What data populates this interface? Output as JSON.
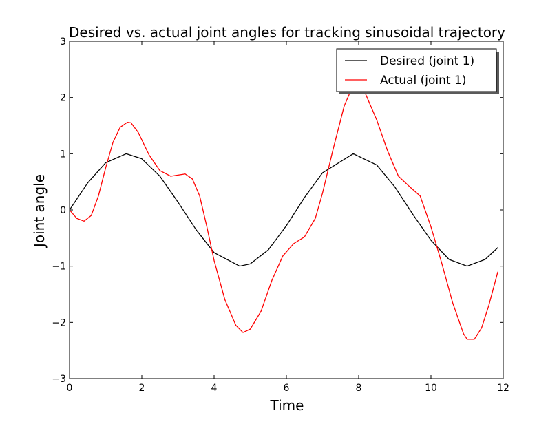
{
  "chart_data": {
    "type": "line",
    "title": "Desired vs. actual joint angles for tracking sinusoidal trajectory",
    "xlabel": "Time",
    "ylabel": "Joint angle",
    "xlim": [
      0,
      12
    ],
    "ylim": [
      -3,
      3
    ],
    "xticks": [
      "0",
      "2",
      "4",
      "6",
      "8",
      "10",
      "12"
    ],
    "yticks": [
      "−3",
      "−2",
      "−1",
      "0",
      "1",
      "2",
      "3"
    ],
    "grid": false,
    "legend_position": "top-right",
    "series": [
      {
        "name": "Desired (joint 1)",
        "color": "#000000",
        "x": [
          0.0,
          0.5,
          1.0,
          1.57,
          2.0,
          2.5,
          3.0,
          3.5,
          4.0,
          4.71,
          5.0,
          5.5,
          6.0,
          6.5,
          7.0,
          7.85,
          8.5,
          9.0,
          9.5,
          10.0,
          10.5,
          11.0,
          11.5,
          11.85
        ],
        "values": [
          0.0,
          0.48,
          0.84,
          1.0,
          0.91,
          0.6,
          0.14,
          -0.35,
          -0.76,
          -1.0,
          -0.96,
          -0.71,
          -0.28,
          0.22,
          0.66,
          1.0,
          0.8,
          0.41,
          -0.08,
          -0.54,
          -0.88,
          -1.0,
          -0.88,
          -0.67
        ]
      },
      {
        "name": "Actual (joint 1)",
        "color": "#ff0000",
        "x": [
          0.0,
          0.2,
          0.4,
          0.6,
          0.8,
          1.0,
          1.2,
          1.4,
          1.6,
          1.7,
          1.9,
          2.2,
          2.5,
          2.8,
          3.0,
          3.2,
          3.4,
          3.6,
          3.8,
          4.0,
          4.3,
          4.6,
          4.8,
          5.0,
          5.3,
          5.6,
          5.9,
          6.2,
          6.5,
          6.8,
          7.0,
          7.3,
          7.6,
          7.8,
          8.0,
          8.2,
          8.5,
          8.8,
          9.1,
          9.4,
          9.7,
          10.0,
          10.3,
          10.6,
          10.9,
          11.0,
          11.2,
          11.4,
          11.6,
          11.85
        ],
        "values": [
          0.0,
          -0.15,
          -0.2,
          -0.1,
          0.25,
          0.75,
          1.2,
          1.47,
          1.56,
          1.55,
          1.38,
          0.98,
          0.7,
          0.6,
          0.62,
          0.64,
          0.55,
          0.25,
          -0.3,
          -0.9,
          -1.6,
          -2.05,
          -2.18,
          -2.12,
          -1.8,
          -1.25,
          -0.82,
          -0.6,
          -0.48,
          -0.15,
          0.3,
          1.1,
          1.85,
          2.15,
          2.25,
          2.05,
          1.6,
          1.05,
          0.6,
          0.42,
          0.25,
          -0.3,
          -0.95,
          -1.65,
          -2.2,
          -2.3,
          -2.3,
          -2.1,
          -1.7,
          -1.1
        ]
      }
    ]
  }
}
